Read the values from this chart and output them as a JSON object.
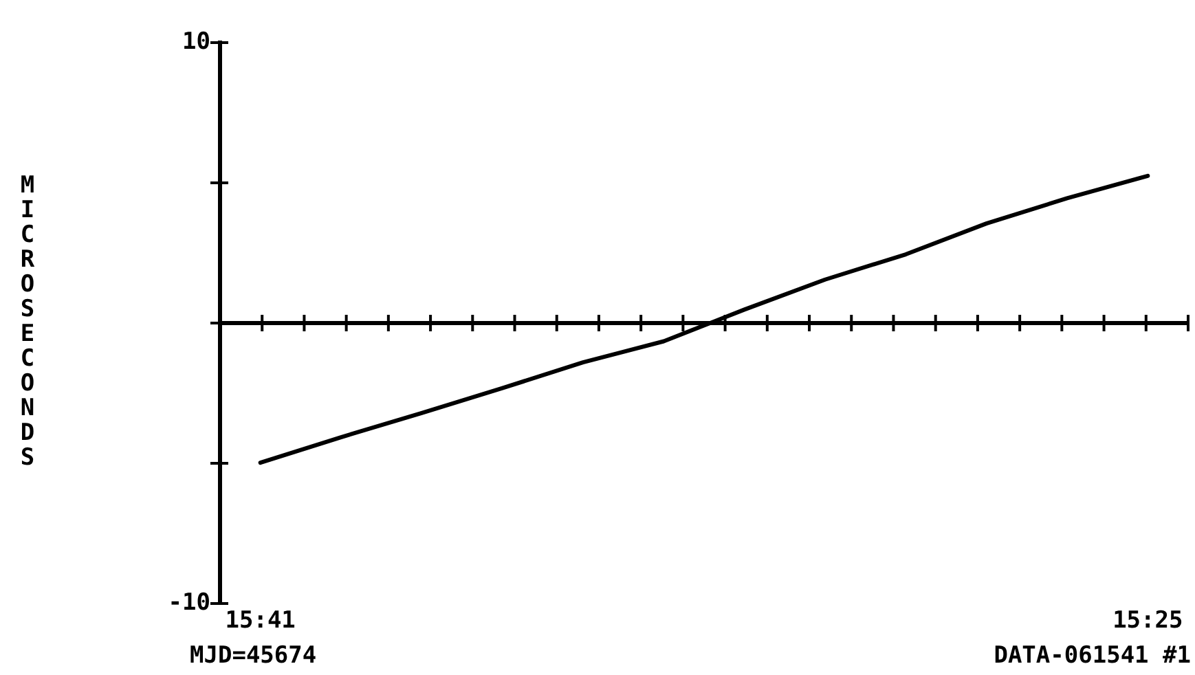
{
  "chart_data": {
    "type": "line",
    "ylabel": "MICROSECONDS",
    "categories": [
      "15:41",
      null,
      null,
      null,
      null,
      null,
      null,
      null,
      null,
      null,
      null,
      "15:25"
    ],
    "values": [
      -4.98,
      -4.07,
      -3.21,
      -2.32,
      -1.4,
      -0.65,
      0.48,
      1.55,
      2.45,
      3.55,
      4.45,
      5.25
    ],
    "color": "#000000",
    "ylim": [
      -10,
      10
    ],
    "yticks": [
      -10,
      {
        "value": -5,
        "label": null
      },
      {
        "value": 0,
        "label": null
      },
      {
        "value": 5,
        "label": null
      },
      10
    ],
    "ref_lines": [
      {
        "axis": "y",
        "value": 0,
        "color": "#000000"
      }
    ],
    "annotations": [
      "MJD=45674",
      "DATA-061541 #1"
    ],
    "grid": false,
    "legend": false,
    "marker": "none",
    "line_style": "solid"
  }
}
